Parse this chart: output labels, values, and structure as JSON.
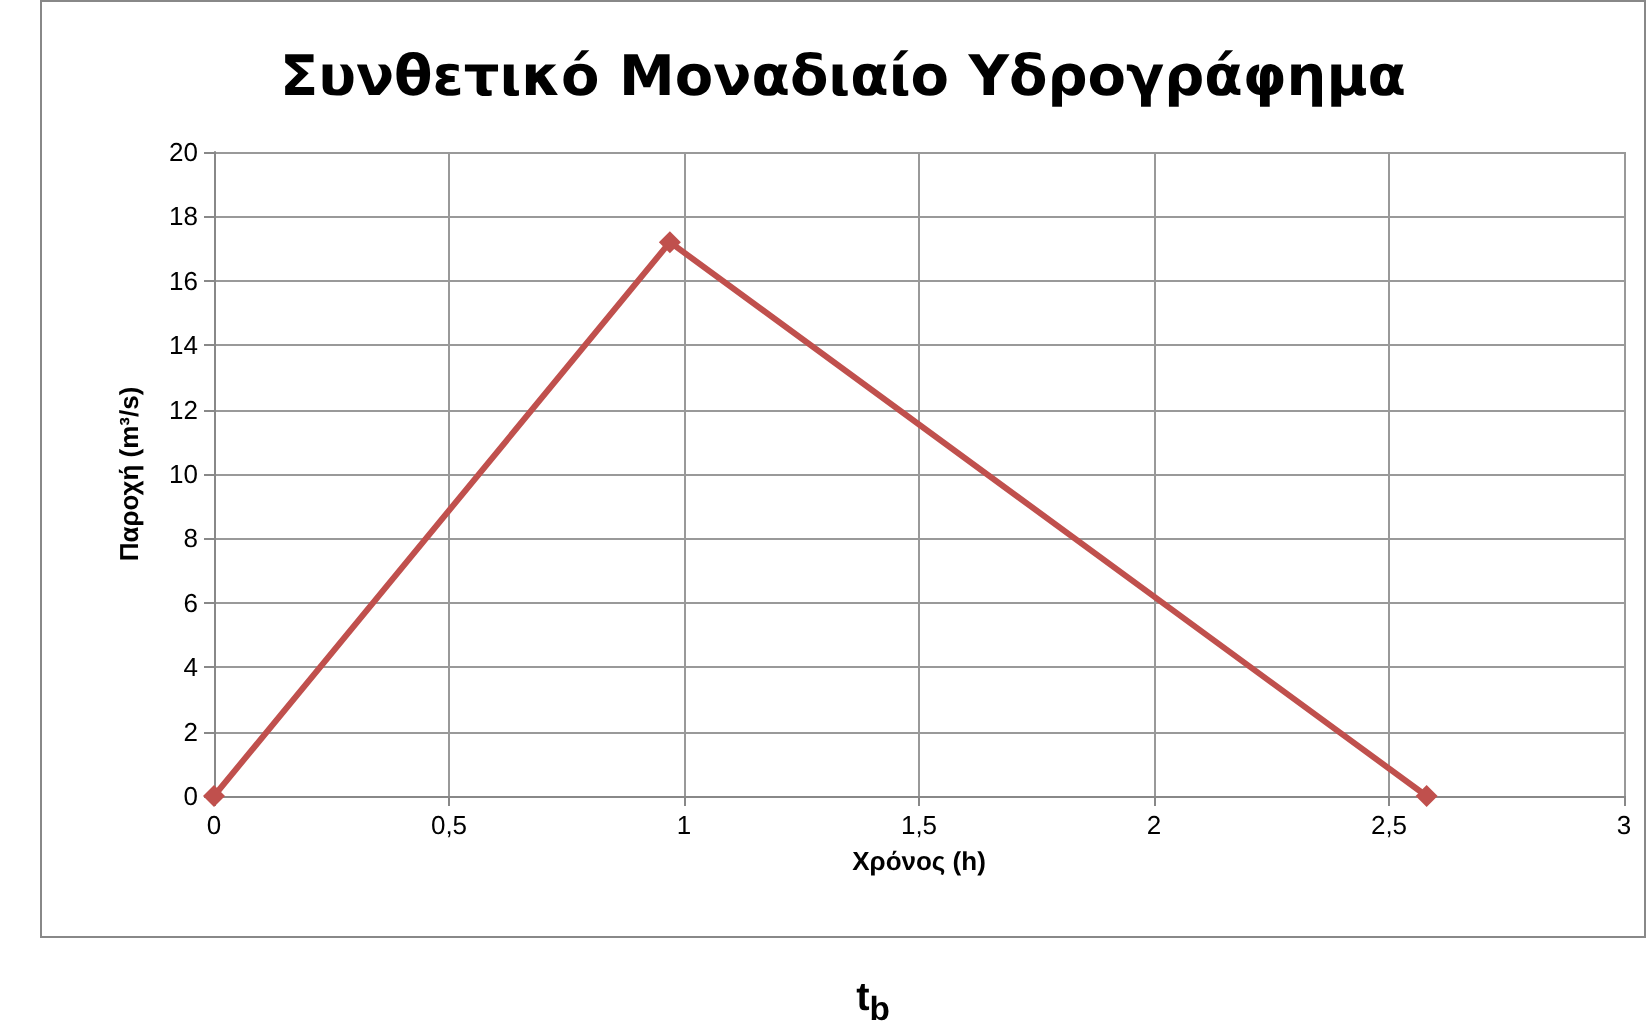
{
  "chart_data": {
    "type": "line",
    "title": "Συνθετικό Μοναδιαίο Υδρογράφημα",
    "xlabel": "Χρόνος (h)",
    "ylabel": "Παροχή (m³/s)",
    "x": [
      0,
      0.97,
      2.58
    ],
    "series": [
      {
        "color": "#c0504d",
        "values": [
          0,
          17.2,
          0
        ]
      }
    ],
    "xlim": [
      0,
      3
    ],
    "xticks": [
      0,
      {
        "value": 0.5,
        "label": "0,5"
      },
      1,
      {
        "value": 1.5,
        "label": "1,5"
      },
      2,
      {
        "value": 2.5,
        "label": "2,5"
      },
      3
    ],
    "ylim": [
      0,
      20
    ],
    "yticks": [
      0,
      2,
      4,
      6,
      8,
      10,
      12,
      14,
      16,
      18,
      20
    ],
    "grid": true,
    "marker": "diamond",
    "line_style": "solid",
    "annotations": [
      "t$_{b}$"
    ]
  }
}
